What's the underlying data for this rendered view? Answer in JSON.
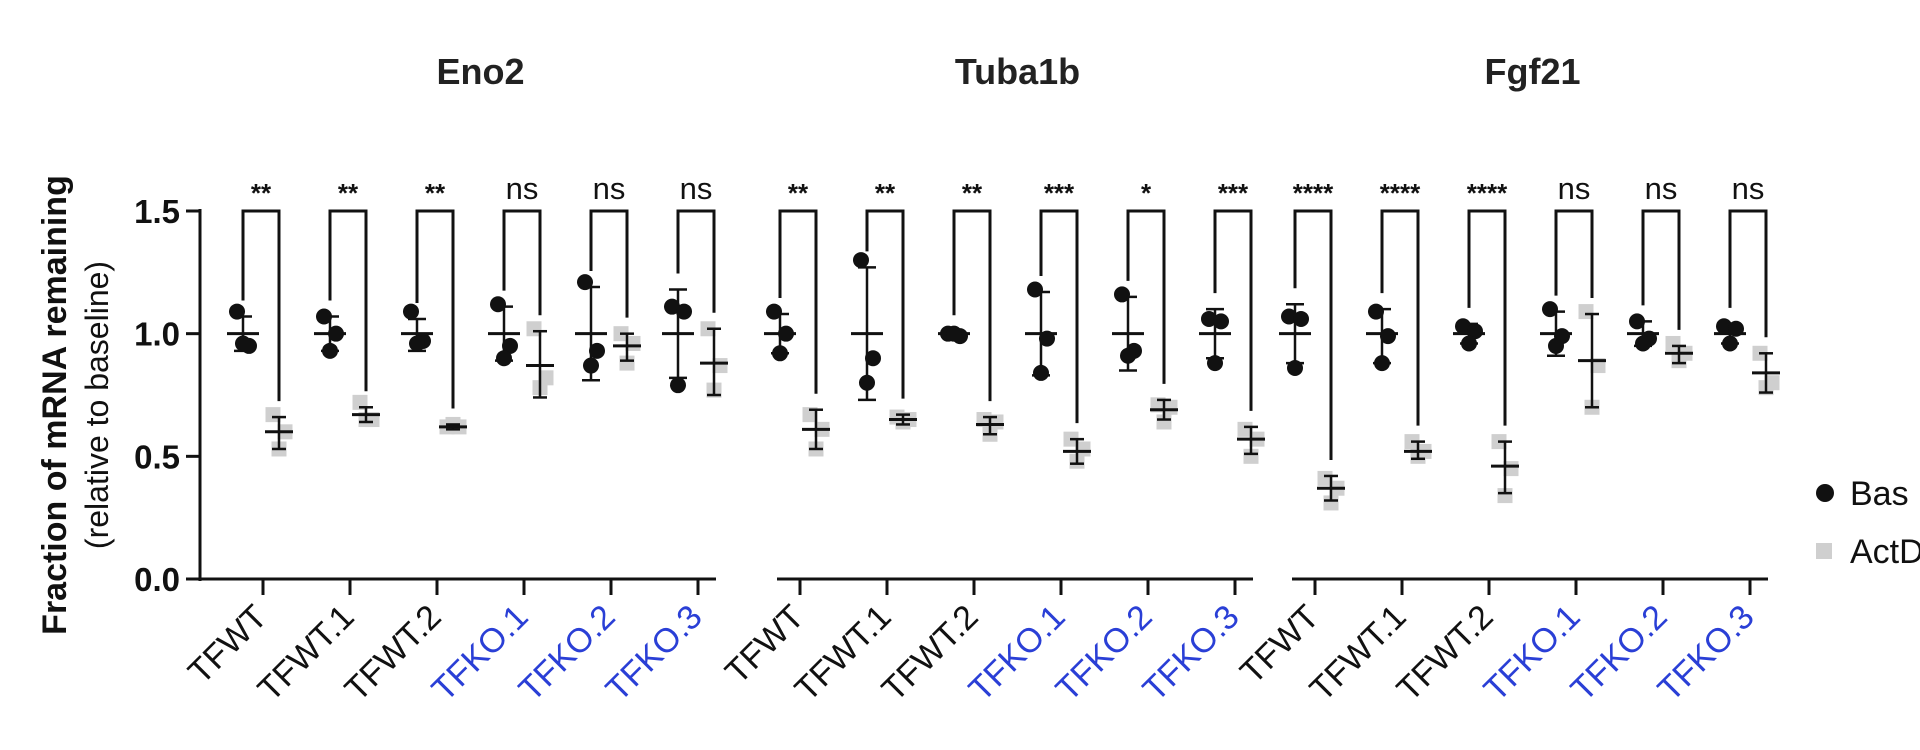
{
  "chart_data": {
    "type": "scatter",
    "ylabel_line1": "Fraction of mRNA remaining",
    "ylabel_line2": "(relative to baseline)",
    "ylim": [
      0,
      1.5
    ],
    "yticks": [
      "0.0",
      "0.5",
      "1.0",
      "1.5"
    ],
    "legend": [
      {
        "label": "Bas",
        "marker": "circle",
        "color": "#111111"
      },
      {
        "label": "ActD",
        "marker": "square",
        "color": "#cfcfcf"
      }
    ],
    "colors": {
      "wt_label": "#111111",
      "ko_label": "#2a3fd6",
      "baseline": "#111111",
      "actd": "#cfcfcf"
    },
    "panels": [
      {
        "title": "Eno2",
        "groups": [
          {
            "label": "TFWT",
            "ko": false,
            "sig": "**",
            "baseline": [
              1.09,
              0.95,
              0.96
            ],
            "baseline_mean": 1.0,
            "baseline_err": [
              0.93,
              1.07
            ],
            "actd": [
              0.67,
              0.6,
              0.53
            ],
            "actd_mean": 0.6,
            "actd_err": [
              0.53,
              0.66
            ]
          },
          {
            "label": "TFWT.1",
            "ko": false,
            "sig": "**",
            "baseline": [
              1.07,
              1.0,
              0.93
            ],
            "baseline_mean": 1.0,
            "baseline_err": [
              0.93,
              1.07
            ],
            "actd": [
              0.72,
              0.65,
              0.65
            ],
            "actd_mean": 0.67,
            "actd_err": [
              0.64,
              0.7
            ]
          },
          {
            "label": "TFWT.2",
            "ko": false,
            "sig": "**",
            "baseline": [
              1.09,
              0.97,
              0.96
            ],
            "baseline_mean": 1.0,
            "baseline_err": [
              0.93,
              1.06
            ],
            "actd": [
              0.62,
              0.62,
              0.63
            ],
            "actd_mean": 0.62,
            "actd_err": [
              0.61,
              0.63
            ]
          },
          {
            "label": "TFKO.1",
            "ko": true,
            "sig": "ns",
            "baseline": [
              1.12,
              0.95,
              0.9
            ],
            "baseline_mean": 1.0,
            "baseline_err": [
              0.89,
              1.11
            ],
            "actd": [
              1.02,
              0.82,
              0.78
            ],
            "actd_mean": 0.87,
            "actd_err": [
              0.74,
              1.01
            ]
          },
          {
            "label": "TFKO.2",
            "ko": true,
            "sig": "ns",
            "baseline": [
              1.21,
              0.93,
              0.87
            ],
            "baseline_mean": 1.0,
            "baseline_err": [
              0.81,
              1.19
            ],
            "actd": [
              1.0,
              0.96,
              0.88
            ],
            "actd_mean": 0.95,
            "actd_err": [
              0.89,
              1.0
            ]
          },
          {
            "label": "TFKO.3",
            "ko": true,
            "sig": "ns",
            "baseline": [
              1.11,
              1.09,
              0.79
            ],
            "baseline_mean": 1.0,
            "baseline_err": [
              0.82,
              1.18
            ],
            "actd": [
              1.02,
              0.87,
              0.77
            ],
            "actd_mean": 0.88,
            "actd_err": [
              0.75,
              1.02
            ]
          }
        ]
      },
      {
        "title": "Tuba1b",
        "groups": [
          {
            "label": "TFWT",
            "ko": false,
            "sig": "**",
            "baseline": [
              1.09,
              1.0,
              0.92
            ],
            "baseline_mean": 1.0,
            "baseline_err": [
              0.92,
              1.08
            ],
            "actd": [
              0.67,
              0.61,
              0.53
            ],
            "actd_mean": 0.61,
            "actd_err": [
              0.53,
              0.69
            ]
          },
          {
            "label": "TFWT.1",
            "ko": false,
            "sig": "**",
            "baseline": [
              1.3,
              0.9,
              0.8
            ],
            "baseline_mean": 1.0,
            "baseline_err": [
              0.73,
              1.27
            ],
            "actd": [
              0.66,
              0.65,
              0.64
            ],
            "actd_mean": 0.65,
            "actd_err": [
              0.63,
              0.67
            ]
          },
          {
            "label": "TFWT.2",
            "ko": false,
            "sig": "**",
            "baseline": [
              1.0,
              0.99,
              1.0
            ],
            "baseline_mean": 1.0,
            "baseline_err": [
              0.99,
              1.01
            ],
            "actd": [
              0.65,
              0.64,
              0.59
            ],
            "actd_mean": 0.63,
            "actd_err": [
              0.59,
              0.66
            ]
          },
          {
            "label": "TFKO.1",
            "ko": true,
            "sig": "***",
            "baseline": [
              1.18,
              0.98,
              0.84
            ],
            "baseline_mean": 1.0,
            "baseline_err": [
              0.83,
              1.17
            ],
            "actd": [
              0.57,
              0.53,
              0.48
            ],
            "actd_mean": 0.52,
            "actd_err": [
              0.47,
              0.57
            ]
          },
          {
            "label": "TFKO.2",
            "ko": true,
            "sig": "*",
            "baseline": [
              1.16,
              0.93,
              0.91
            ],
            "baseline_mean": 1.0,
            "baseline_err": [
              0.85,
              1.15
            ],
            "actd": [
              0.71,
              0.7,
              0.64
            ],
            "actd_mean": 0.69,
            "actd_err": [
              0.65,
              0.73
            ]
          },
          {
            "label": "TFKO.3",
            "ko": true,
            "sig": "***",
            "baseline": [
              1.06,
              1.05,
              0.88
            ],
            "baseline_mean": 1.0,
            "baseline_err": [
              0.9,
              1.1
            ],
            "actd": [
              0.61,
              0.57,
              0.5
            ],
            "actd_mean": 0.57,
            "actd_err": [
              0.51,
              0.62
            ]
          }
        ]
      },
      {
        "title": "Fgf21",
        "groups": [
          {
            "label": "TFWT",
            "ko": false,
            "sig": "****",
            "baseline": [
              1.07,
              1.06,
              0.86
            ],
            "baseline_mean": 1.0,
            "baseline_err": [
              0.88,
              1.12
            ],
            "actd": [
              0.41,
              0.37,
              0.31
            ],
            "actd_mean": 0.37,
            "actd_err": [
              0.32,
              0.42
            ]
          },
          {
            "label": "TFWT.1",
            "ko": false,
            "sig": "****",
            "baseline": [
              1.09,
              0.99,
              0.88
            ],
            "baseline_mean": 1.0,
            "baseline_err": [
              0.88,
              1.1
            ],
            "actd": [
              0.56,
              0.52,
              0.5
            ],
            "actd_mean": 0.52,
            "actd_err": [
              0.49,
              0.56
            ]
          },
          {
            "label": "TFWT.2",
            "ko": false,
            "sig": "****",
            "baseline": [
              1.03,
              1.01,
              0.96
            ],
            "baseline_mean": 1.0,
            "baseline_err": [
              0.96,
              1.04
            ],
            "actd": [
              0.56,
              0.45,
              0.34
            ],
            "actd_mean": 0.46,
            "actd_err": [
              0.35,
              0.56
            ]
          },
          {
            "label": "TFKO.1",
            "ko": true,
            "sig": "ns",
            "baseline": [
              1.1,
              0.99,
              0.95
            ],
            "baseline_mean": 1.0,
            "baseline_err": [
              0.91,
              1.09
            ],
            "actd": [
              1.09,
              0.87,
              0.7
            ],
            "actd_mean": 0.89,
            "actd_err": [
              0.7,
              1.08
            ]
          },
          {
            "label": "TFKO.2",
            "ko": true,
            "sig": "ns",
            "baseline": [
              1.05,
              0.98,
              0.96
            ],
            "baseline_mean": 1.0,
            "baseline_err": [
              0.95,
              1.05
            ],
            "actd": [
              0.96,
              0.92,
              0.89
            ],
            "actd_mean": 0.92,
            "actd_err": [
              0.88,
              0.95
            ]
          },
          {
            "label": "TFKO.3",
            "ko": true,
            "sig": "ns",
            "baseline": [
              1.03,
              1.02,
              0.96
            ],
            "baseline_mean": 1.0,
            "baseline_err": [
              0.96,
              1.04
            ],
            "actd": [
              0.92,
              0.8,
              0.78
            ],
            "actd_mean": 0.84,
            "actd_err": [
              0.76,
              0.92
            ]
          }
        ]
      }
    ]
  }
}
